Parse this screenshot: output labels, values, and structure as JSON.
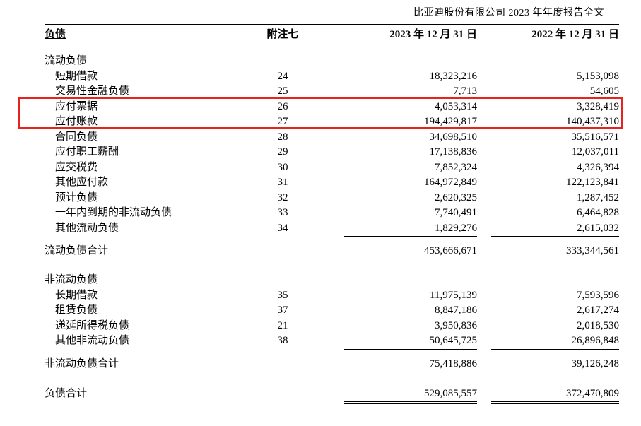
{
  "page": {
    "doc_header": "比亚迪股份有限公司 2023 年年度报告全文"
  },
  "table": {
    "columns": {
      "liabilities": "负债",
      "note": "附注七",
      "date_2023": "2023 年 12 月 31 日",
      "date_2022": "2022 年 12 月 31 日"
    },
    "rows": [
      {
        "type": "section",
        "label": "流动负债"
      },
      {
        "type": "item",
        "label": "短期借款",
        "note": "24",
        "v2023": "18,323,216",
        "v2022": "5,153,098"
      },
      {
        "type": "item",
        "label": "交易性金融负债",
        "note": "25",
        "v2023": "7,713",
        "v2022": "54,605"
      },
      {
        "type": "item",
        "label": "应付票据",
        "note": "26",
        "v2023": "4,053,314",
        "v2022": "3,328,419",
        "highlighted": true
      },
      {
        "type": "item",
        "label": "应付账款",
        "note": "27",
        "v2023": "194,429,817",
        "v2022": "140,437,310",
        "highlighted": true
      },
      {
        "type": "item",
        "label": "合同负债",
        "note": "28",
        "v2023": "34,698,510",
        "v2022": "35,516,571"
      },
      {
        "type": "item",
        "label": "应付职工薪酬",
        "note": "29",
        "v2023": "17,138,836",
        "v2022": "12,037,011"
      },
      {
        "type": "item",
        "label": "应交税费",
        "note": "30",
        "v2023": "7,852,324",
        "v2022": "4,326,394"
      },
      {
        "type": "item",
        "label": "其他应付款",
        "note": "31",
        "v2023": "164,972,849",
        "v2022": "122,123,841"
      },
      {
        "type": "item",
        "label": "预计负债",
        "note": "32",
        "v2023": "2,620,325",
        "v2022": "1,287,452"
      },
      {
        "type": "item",
        "label": "一年内到期的非流动负债",
        "note": "33",
        "v2023": "7,740,491",
        "v2022": "6,464,828"
      },
      {
        "type": "item",
        "label": "其他流动负债",
        "note": "34",
        "v2023": "1,829,276",
        "v2022": "2,615,032",
        "rule": true
      },
      {
        "type": "total",
        "label": "流动负债合计",
        "note": "",
        "v2023": "453,666,671",
        "v2022": "333,344,561",
        "rule": true
      },
      {
        "type": "section",
        "label": "非流动负债"
      },
      {
        "type": "item",
        "label": "长期借款",
        "note": "35",
        "v2023": "11,975,139",
        "v2022": "7,593,596"
      },
      {
        "type": "item",
        "label": "租赁负债",
        "note": "37",
        "v2023": "8,847,186",
        "v2022": "2,617,274"
      },
      {
        "type": "item",
        "label": "递延所得税负债",
        "note": "21",
        "v2023": "3,950,836",
        "v2022": "2,018,530"
      },
      {
        "type": "item",
        "label": "其他非流动负债",
        "note": "38",
        "v2023": "50,645,725",
        "v2022": "26,896,848",
        "rule": true
      },
      {
        "type": "total",
        "label": "非流动负债合计",
        "note": "",
        "v2023": "75,418,886",
        "v2022": "39,126,248",
        "rule": true
      },
      {
        "type": "grandtotal",
        "label": "负债合计",
        "note": "",
        "v2023": "529,085,557",
        "v2022": "372,470,809"
      }
    ],
    "highlight": {
      "color": "#e8231d",
      "highlighted_rows": [
        "应付票据",
        "应付账款"
      ],
      "highlighted_notes": [
        "26",
        "27"
      ]
    }
  }
}
